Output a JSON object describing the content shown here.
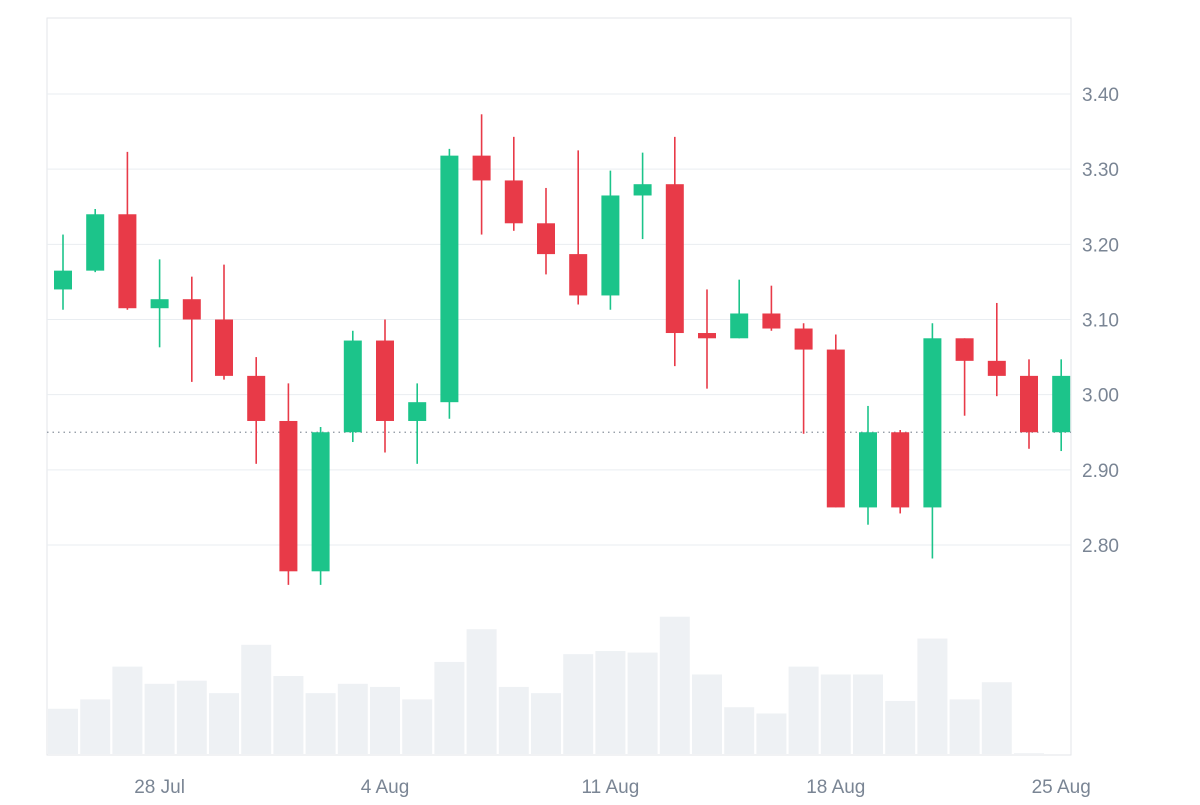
{
  "chart_data": {
    "type": "candlestick",
    "x": [
      "2025-07-25",
      "2025-07-26",
      "2025-07-27",
      "2025-07-28",
      "2025-07-29",
      "2025-07-30",
      "2025-07-31",
      "2025-08-01",
      "2025-08-02",
      "2025-08-03",
      "2025-08-04",
      "2025-08-05",
      "2025-08-06",
      "2025-08-07",
      "2025-08-08",
      "2025-08-09",
      "2025-08-10",
      "2025-08-11",
      "2025-08-12",
      "2025-08-13",
      "2025-08-14",
      "2025-08-15",
      "2025-08-16",
      "2025-08-17",
      "2025-08-18",
      "2025-08-19",
      "2025-08-20",
      "2025-08-21",
      "2025-08-22",
      "2025-08-23",
      "2025-08-24",
      "2025-08-25"
    ],
    "open": [
      3.14,
      3.165,
      3.24,
      3.115,
      3.127,
      3.1,
      3.025,
      2.965,
      2.765,
      2.95,
      3.072,
      2.965,
      2.99,
      3.318,
      3.285,
      3.228,
      3.187,
      3.132,
      3.265,
      3.28,
      3.082,
      3.075,
      3.108,
      3.088,
      3.06,
      2.85,
      2.95,
      2.85,
      3.075,
      3.045,
      3.025,
      2.95
    ],
    "high": [
      3.213,
      3.247,
      3.323,
      3.18,
      3.157,
      3.173,
      3.05,
      3.015,
      2.957,
      3.085,
      3.1,
      3.015,
      3.327,
      3.373,
      3.343,
      3.275,
      3.325,
      3.298,
      3.322,
      3.343,
      3.14,
      3.153,
      3.145,
      3.095,
      3.08,
      2.985,
      2.953,
      3.095,
      3.075,
      3.122,
      3.047,
      3.047
    ],
    "low": [
      3.113,
      3.163,
      3.113,
      3.063,
      3.017,
      3.02,
      2.908,
      2.747,
      2.747,
      2.937,
      2.923,
      2.908,
      2.968,
      3.213,
      3.218,
      3.16,
      3.12,
      3.113,
      3.207,
      3.038,
      3.008,
      3.075,
      3.085,
      2.948,
      2.85,
      2.827,
      2.842,
      2.782,
      2.972,
      2.998,
      2.928,
      2.925
    ],
    "close": [
      3.165,
      3.24,
      3.115,
      3.127,
      3.1,
      3.025,
      2.965,
      2.765,
      2.95,
      3.072,
      2.965,
      2.99,
      3.318,
      3.285,
      3.228,
      3.187,
      3.132,
      3.265,
      3.28,
      3.082,
      3.075,
      3.108,
      3.088,
      3.06,
      2.85,
      2.95,
      2.85,
      3.075,
      3.045,
      3.025,
      2.95,
      3.025
    ],
    "volume": [
      58,
      70,
      112,
      90,
      94,
      78,
      140,
      100,
      78,
      90,
      86,
      70,
      118,
      160,
      86,
      78,
      128,
      132,
      130,
      176,
      102,
      60,
      52,
      112,
      102,
      102,
      68,
      148,
      70,
      92,
      1,
      0
    ],
    "direction_note_removed": true,
    "y_ticks": [
      "3.40",
      "3.30",
      "3.20",
      "3.10",
      "3.00",
      "2.90",
      "2.80"
    ],
    "y_tick_values": [
      3.4,
      3.3,
      3.2,
      3.1,
      3.0,
      2.9,
      2.8
    ],
    "x_ticks": [
      "28 Jul",
      "4 Aug",
      "11 Aug",
      "18 Aug",
      "25 Aug"
    ],
    "x_tick_dates": [
      "2025-07-28",
      "2025-08-04",
      "2025-08-11",
      "2025-08-18",
      "2025-08-25"
    ],
    "ylim": [
      2.58,
      3.5
    ],
    "price_line": 2.95,
    "grid": true,
    "colors": {
      "up": "#1cc48a",
      "down": "#e83a48",
      "volume": "#eef1f4",
      "grid": "#e9edf1",
      "axis_text": "#7a8594",
      "border": "#e3e6ea",
      "price_line": "#8a939e"
    }
  }
}
